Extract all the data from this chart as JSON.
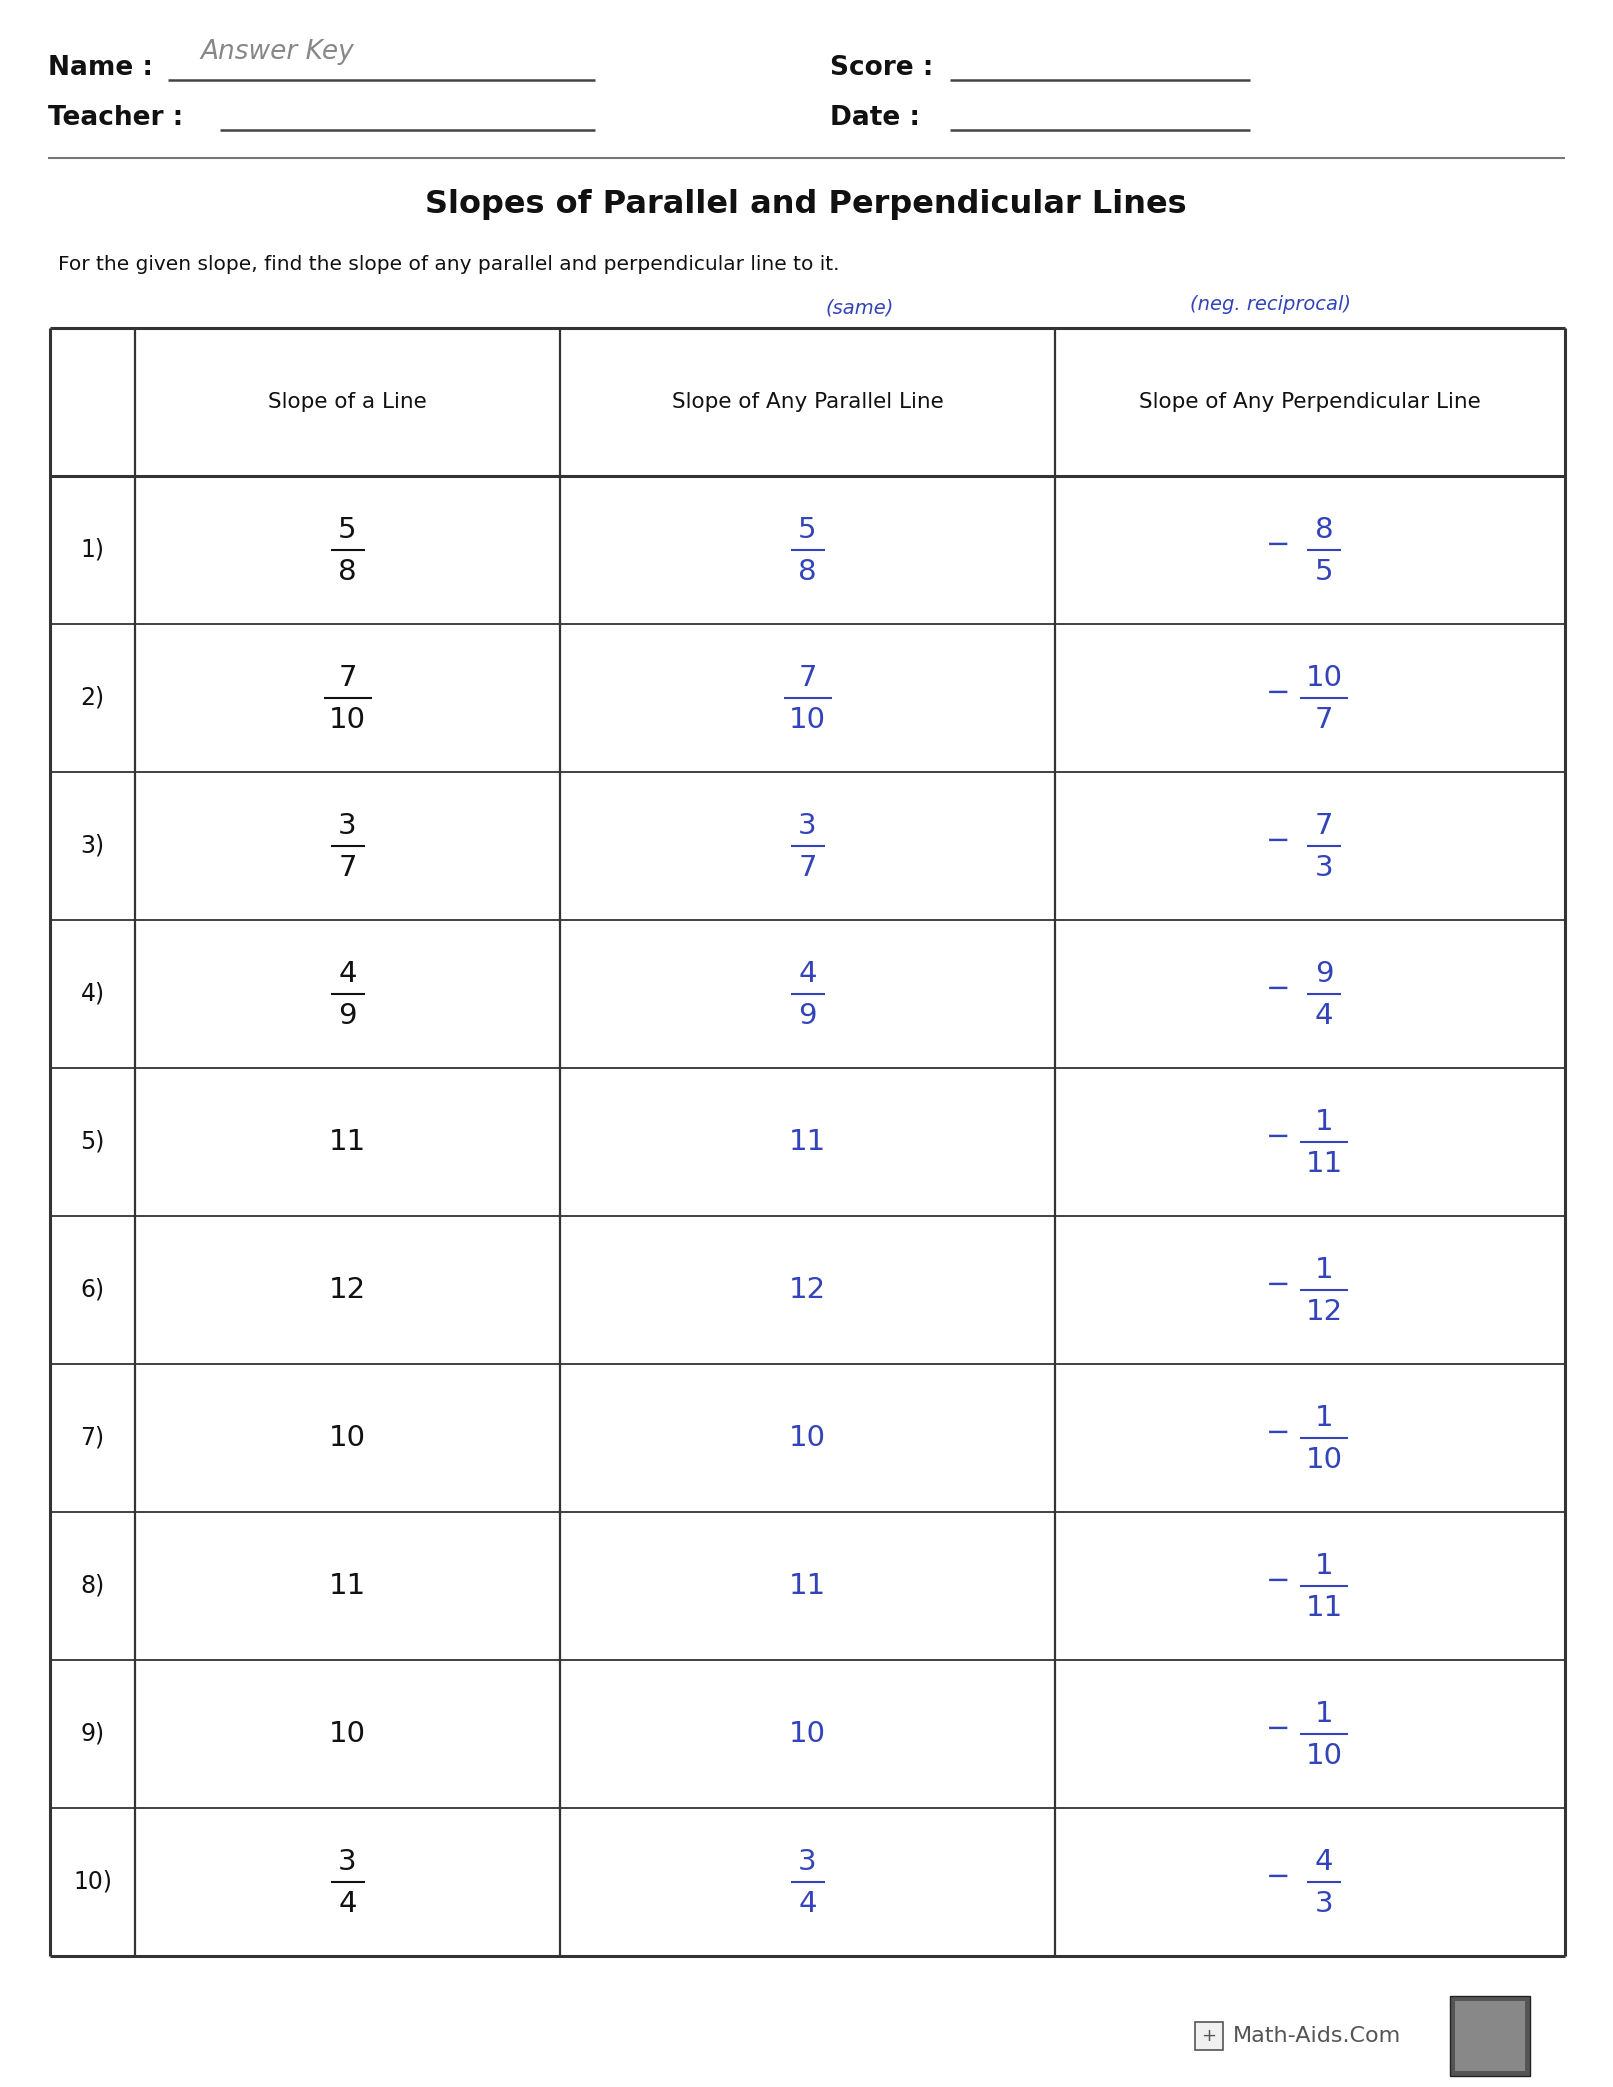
{
  "title": "Slopes of Parallel and Perpendicular Lines",
  "subtitle": "For the given slope, find the slope of any parallel and perpendicular line to it.",
  "header_col1": "Slope of a Line",
  "header_col2": "Slope of Any Parallel Line",
  "header_col3": "Slope of Any Perpendicular Line",
  "annotation_parallel": "(same)",
  "annotation_perp": "(neg. reciprocal)",
  "rows": [
    {
      "num": "1)",
      "given": [
        "5",
        "8"
      ],
      "parallel": [
        "5",
        "8"
      ],
      "perp": [
        "-8",
        "5"
      ]
    },
    {
      "num": "2)",
      "given": [
        "7",
        "10"
      ],
      "parallel": [
        "7",
        "10"
      ],
      "perp": [
        "-10",
        "7"
      ]
    },
    {
      "num": "3)",
      "given": [
        "3",
        "7"
      ],
      "parallel": [
        "3",
        "7"
      ],
      "perp": [
        "-7",
        "3"
      ]
    },
    {
      "num": "4)",
      "given": [
        "4",
        "9"
      ],
      "parallel": [
        "4",
        "9"
      ],
      "perp": [
        "-9",
        "4"
      ]
    },
    {
      "num": "5)",
      "given": "11",
      "parallel": "11",
      "perp": [
        "-1",
        "11"
      ]
    },
    {
      "num": "6)",
      "given": "12",
      "parallel": "12",
      "perp": [
        "-1",
        "12"
      ]
    },
    {
      "num": "7)",
      "given": "10",
      "parallel": "10",
      "perp": [
        "-1",
        "10"
      ]
    },
    {
      "num": "8)",
      "given": "11",
      "parallel": "11",
      "perp": [
        "-1",
        "11"
      ]
    },
    {
      "num": "9)",
      "given": "10",
      "parallel": "10",
      "perp": [
        "-1",
        "10"
      ]
    },
    {
      "num": "10)",
      "given": [
        "3",
        "4"
      ],
      "parallel": [
        "3",
        "4"
      ],
      "perp": [
        "-4",
        "3"
      ]
    }
  ],
  "bg_color": "#ffffff",
  "black": "#111111",
  "blue": "#3344bb",
  "gray": "#555555",
  "footer_text": "Math-Aids.Com",
  "name_label": "Name :",
  "teacher_label": "Teacher :",
  "score_label": "Score :",
  "date_label": "Date :"
}
